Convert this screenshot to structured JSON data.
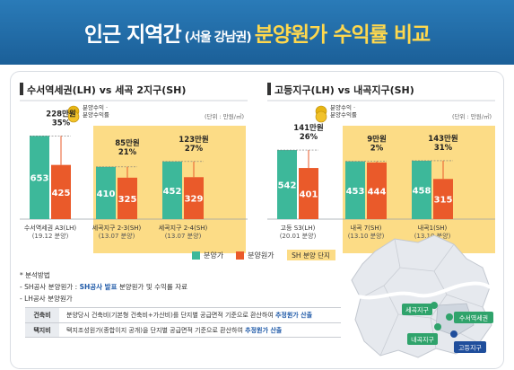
{
  "header": {
    "title_part1": "인근 지역간",
    "title_part2": "(서울 강남권)",
    "title_part3": "분양원가 수익률 비교"
  },
  "colors": {
    "header_bg": "#1f6aa6",
    "sale_price": "#3db89a",
    "cost_price": "#ea5a2a",
    "sh_zone": "#fcdc86",
    "title_accent": "#ffd84d"
  },
  "chart_data": [
    {
      "type": "bar",
      "title": "수서역세권(LH) vs 세곡 2지구(SH)",
      "unit_note": "(단위 : 만원/㎡)",
      "coin_label_1": "분양수익 ·",
      "coin_label_2": "분양수익률",
      "categories": [
        "수서역세권 A3(LH)",
        "세곡지구 2-3(SH)",
        "세곡지구 2-4(SH)"
      ],
      "category_sub": [
        "(19.12 분양)",
        "(13.07 분양)",
        "(13.07 분양)"
      ],
      "series": [
        {
          "name": "분양가",
          "values": [
            653,
            410,
            452
          ]
        },
        {
          "name": "분양원가",
          "values": [
            425,
            325,
            329
          ]
        }
      ],
      "profit": [
        "228만원",
        "85만원",
        "123만원"
      ],
      "profit_rate": [
        "35%",
        "21%",
        "27%"
      ],
      "sh_zone": [
        false,
        true,
        true
      ]
    },
    {
      "type": "bar",
      "title": "고등지구(LH) vs 내곡지구(SH)",
      "unit_note": "(단위 : 만원/㎡)",
      "coin_label_1": "분양수익 ·",
      "coin_label_2": "분양수익률",
      "categories": [
        "고등 S3(LH)",
        "내곡 7(SH)",
        "내곡1(SH)"
      ],
      "category_sub": [
        "(20.01 분양)",
        "(13.10 분양)",
        "(13.10 분양)"
      ],
      "series": [
        {
          "name": "분양가",
          "values": [
            542,
            453,
            458
          ]
        },
        {
          "name": "분양원가",
          "values": [
            401,
            444,
            315
          ]
        }
      ],
      "profit": [
        "141만원",
        "9만원",
        "143만원"
      ],
      "profit_rate": [
        "26%",
        "2%",
        "31%"
      ],
      "sh_zone": [
        false,
        true,
        true
      ]
    }
  ],
  "legend": {
    "sale_price": "분양가",
    "cost_price": "분양원가",
    "sh_zone": "SH 분양 단지"
  },
  "notes": {
    "heading": "* 분석방법",
    "line1_prefix": "- SH공사 분양원가 : ",
    "line1_blue": "SH공사 발표",
    "line1_suffix": " 분양원가 및 수익률 자료",
    "line2": "- LH공사 분양원가",
    "table": [
      {
        "head": "건축비",
        "text": "분양당시 건축비(기본형 건축비+가산비)를 단지별 공급면적 기준으로 환산하여 ",
        "blue": "추정원가 산출"
      },
      {
        "head": "택지비",
        "text": "택지조성원가(종합이지 공개)을 단지별 공급면적 기준으로 환산하여 ",
        "blue": "추정원가 산출"
      }
    ]
  },
  "map": {
    "labels": [
      "세곡지구",
      "수서역세권",
      "내곡지구",
      "고등지구"
    ]
  }
}
